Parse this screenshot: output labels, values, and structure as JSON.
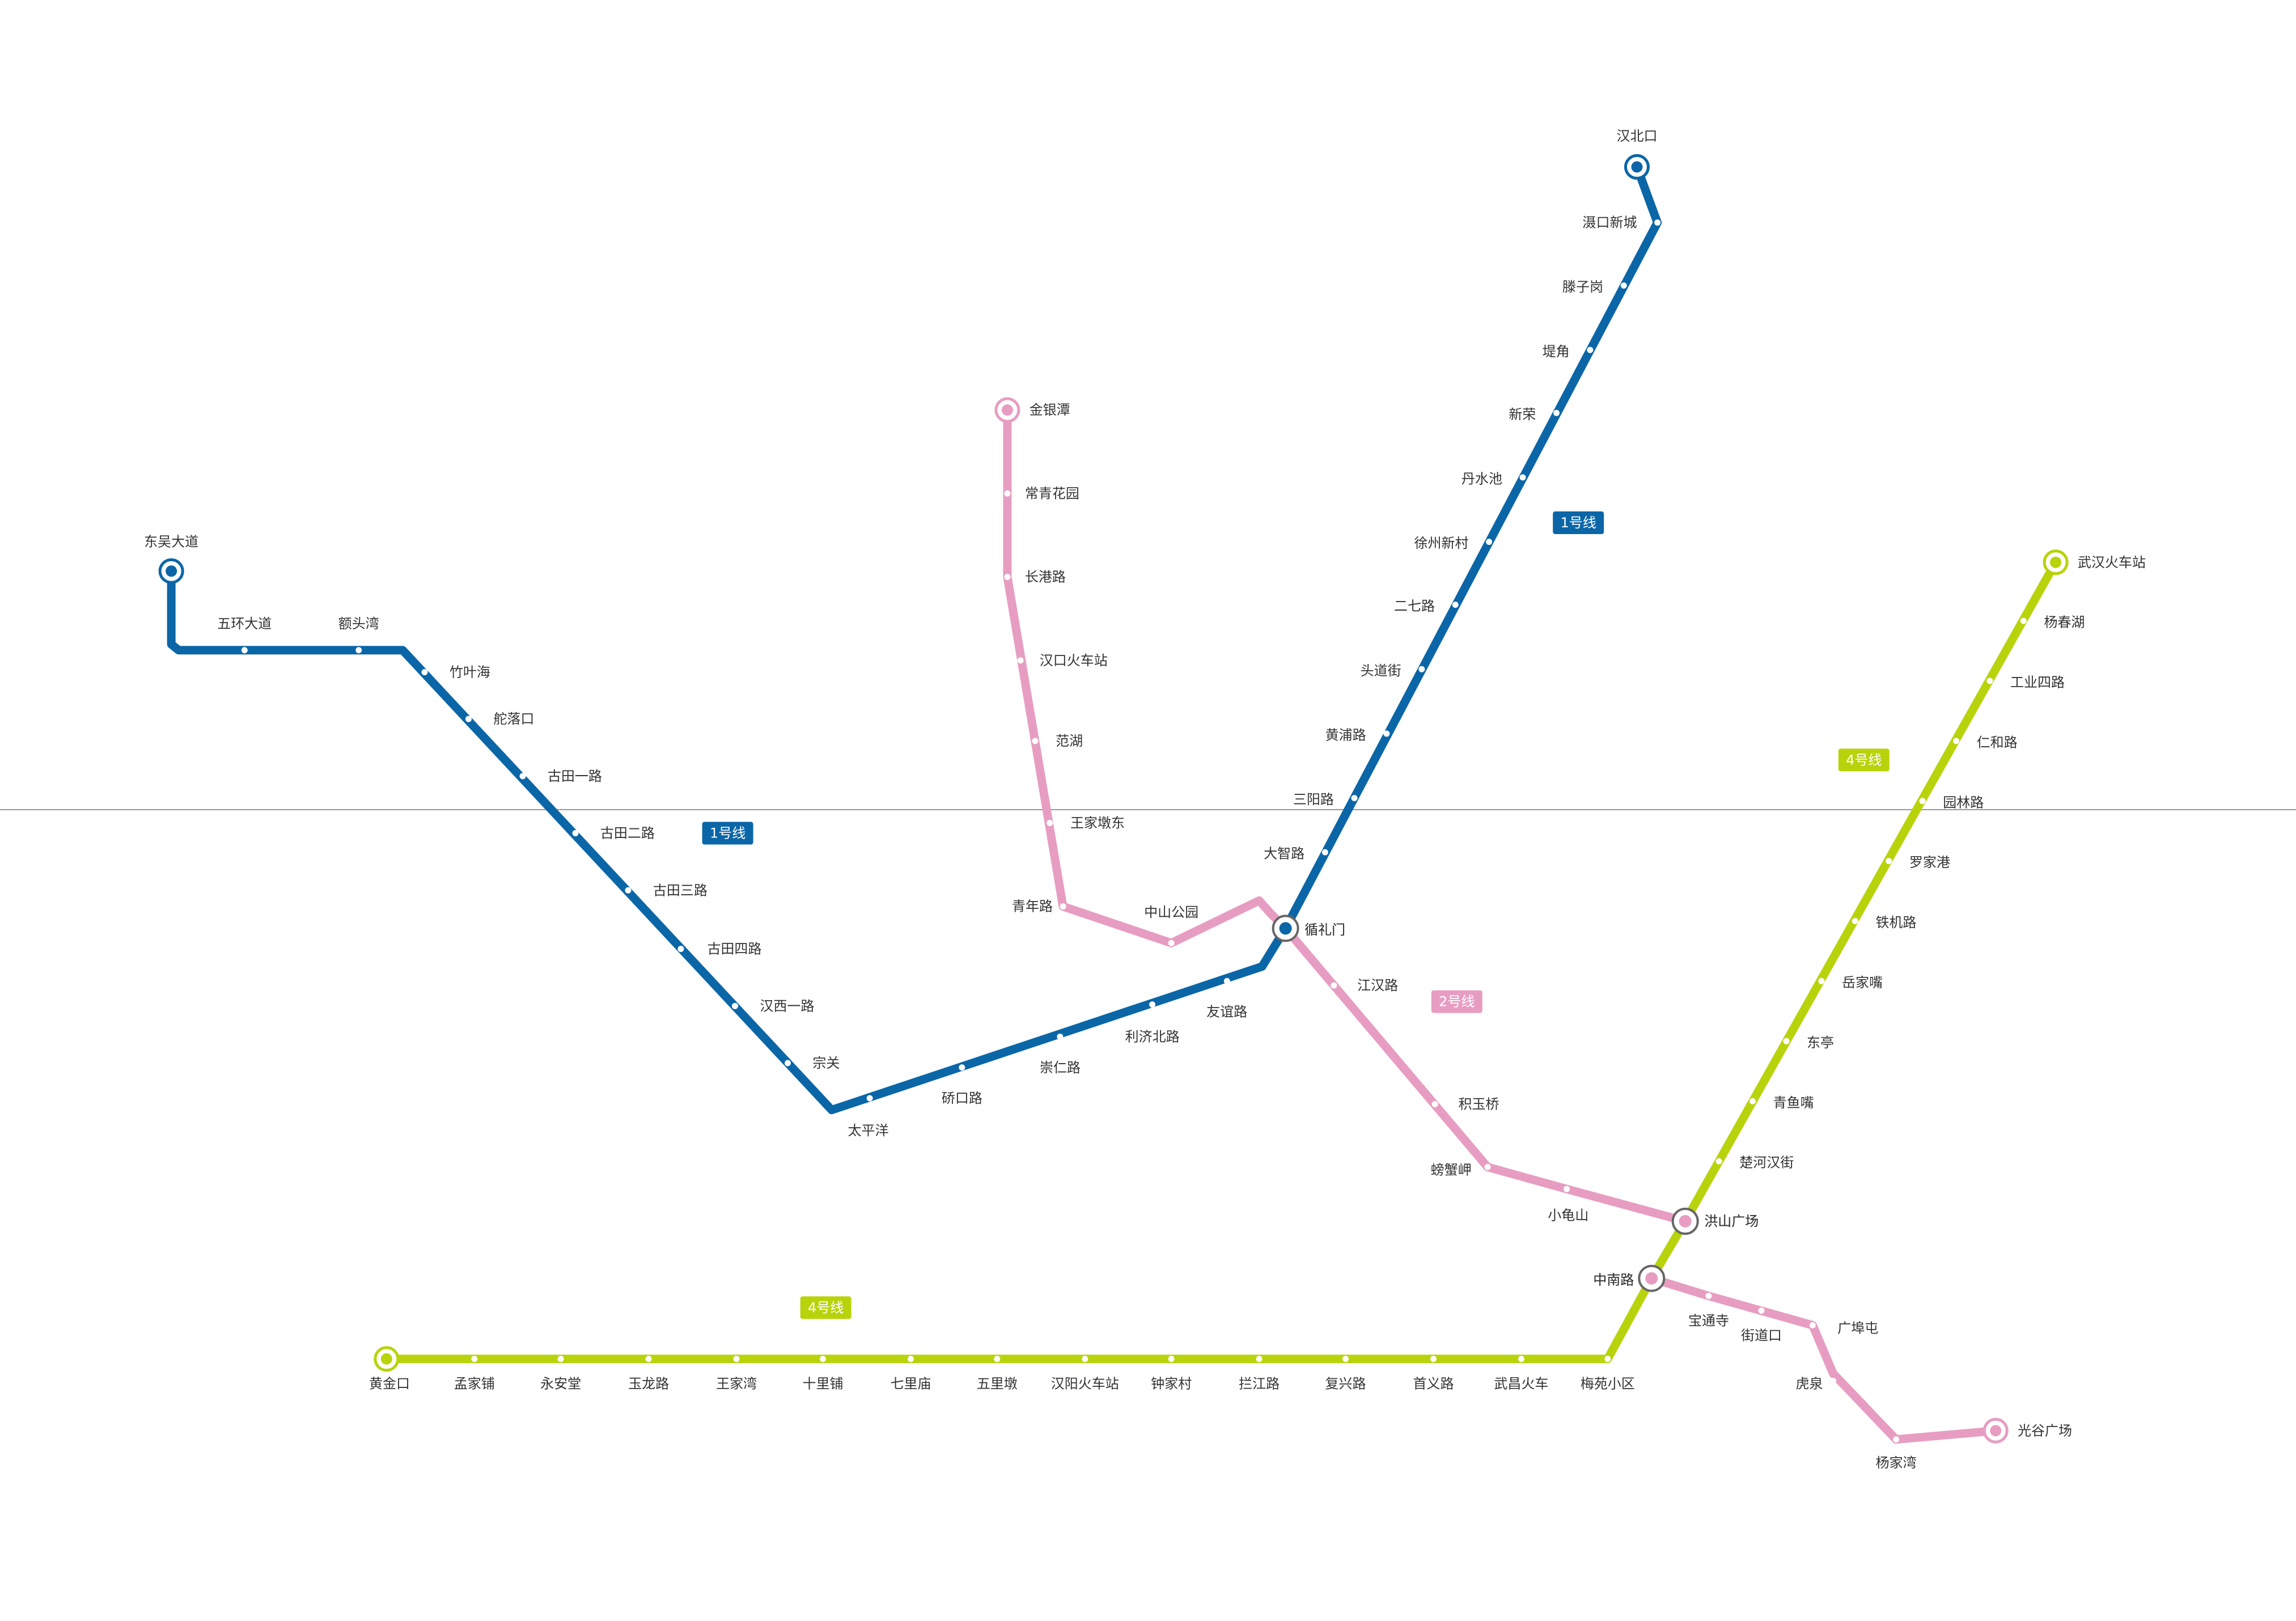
{
  "colors": {
    "line1": "#0b66a7",
    "line2": "#e79dc2",
    "line4": "#b8d30b",
    "divider": "#999999",
    "station_dot": "#ffffff"
  },
  "lines": [
    {
      "id": "line1",
      "badge": "1号线",
      "stations": [
        "东吴大道",
        "五环大道",
        "额头湾",
        "竹叶海",
        "舵落口",
        "古田一路",
        "古田二路",
        "古田三路",
        "古田四路",
        "汉西一路",
        "宗关",
        "太平洋",
        "硚口路",
        "崇仁路",
        "利济北路",
        "友谊路",
        "循礼门",
        "大智路",
        "三阳路",
        "黄浦路",
        "头道街",
        "二七路",
        "徐州新村",
        "丹水池",
        "新荣",
        "堤角",
        "滕子岗",
        "滠口新城",
        "汉北口"
      ]
    },
    {
      "id": "line2",
      "badge": "2号线",
      "stations": [
        "金银潭",
        "常青花园",
        "长港路",
        "汉口火车站",
        "范湖",
        "王家墩东",
        "青年路",
        "中山公园",
        "循礼门",
        "江汉路",
        "积玉桥",
        "螃蟹岬",
        "小龟山",
        "洪山广场",
        "中南路",
        "宝通寺",
        "街道口",
        "广埠屯",
        "虎泉",
        "杨家湾",
        "光谷广场"
      ]
    },
    {
      "id": "line4",
      "badge": "4号线",
      "stations": [
        "黄金口",
        "孟家铺",
        "永安堂",
        "玉龙路",
        "王家湾",
        "十里铺",
        "七里庙",
        "五里墩",
        "汉阳火车站",
        "钟家村",
        "拦江路",
        "复兴路",
        "首义路",
        "武昌火车",
        "梅苑小区",
        "中南路",
        "洪山广场",
        "楚河汉街",
        "青鱼嘴",
        "东亭",
        "岳家嘴",
        "铁机路",
        "罗家港",
        "园林路",
        "仁和路",
        "工业四路",
        "杨春湖",
        "武汉火车站"
      ]
    }
  ]
}
